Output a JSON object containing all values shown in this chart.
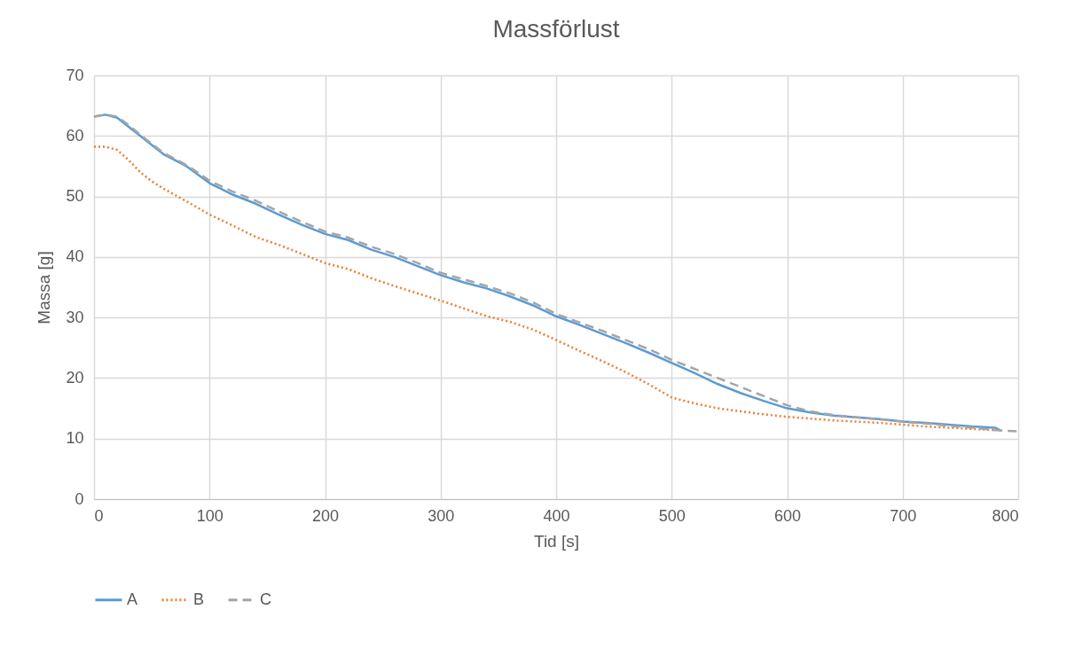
{
  "chart_data": {
    "type": "line",
    "title": "Massförlust",
    "xlabel": "Tid [s]",
    "ylabel": "Massa [g]",
    "xlim": [
      0,
      800
    ],
    "xticks": [
      0,
      100,
      200,
      300,
      400,
      500,
      600,
      700,
      800
    ],
    "ylim": [
      0,
      70
    ],
    "yticks": [
      0,
      10,
      20,
      30,
      40,
      50,
      60,
      70
    ],
    "grid": true,
    "legend": "bottom",
    "marker": "none",
    "series": [
      {
        "name": "A",
        "color": "#5b9bd5",
        "line_style": "solid",
        "x": [
          0,
          10,
          20,
          30,
          40,
          50,
          60,
          80,
          100,
          120,
          140,
          160,
          180,
          200,
          220,
          240,
          260,
          280,
          300,
          320,
          340,
          360,
          380,
          400,
          420,
          440,
          460,
          480,
          500,
          520,
          540,
          560,
          580,
          600,
          620,
          640,
          660,
          680,
          700,
          720,
          740,
          760,
          780,
          785
        ],
        "values": [
          63.2,
          63.5,
          63.0,
          61.5,
          60,
          58.5,
          57,
          55,
          52.2,
          50.3,
          48.8,
          47,
          45.3,
          43.8,
          42.8,
          41.2,
          40,
          38.5,
          37,
          35.8,
          34.8,
          33.5,
          32,
          30.2,
          28.8,
          27.3,
          25.8,
          24.2,
          22.5,
          20.8,
          19,
          17.5,
          16.2,
          15,
          14.3,
          13.8,
          13.5,
          13.2,
          12.8,
          12.6,
          12.3,
          12,
          11.8,
          11.3
        ]
      },
      {
        "name": "B",
        "color": "#ed7d31",
        "line_style": "dotted",
        "x": [
          0,
          10,
          20,
          30,
          40,
          50,
          60,
          80,
          100,
          120,
          140,
          160,
          180,
          200,
          220,
          240,
          260,
          280,
          300,
          320,
          340,
          360,
          380,
          400,
          420,
          440,
          460,
          480,
          500,
          520,
          540,
          560,
          580,
          600,
          620,
          640,
          660,
          680,
          700,
          720,
          740,
          760,
          780
        ],
        "values": [
          58.2,
          58.2,
          57.7,
          56,
          54,
          52.5,
          51.3,
          49.2,
          47,
          45.2,
          43.3,
          42,
          40.5,
          39,
          38,
          36.5,
          35.2,
          34,
          32.8,
          31.5,
          30.2,
          29.3,
          28,
          26.3,
          24.5,
          22.8,
          21,
          19,
          16.8,
          15.8,
          15,
          14.5,
          14,
          13.6,
          13.3,
          13,
          12.8,
          12.6,
          12.3,
          12,
          11.8,
          11.6,
          11.4
        ]
      },
      {
        "name": "C",
        "color": "#a5a5a5",
        "line_style": "dashed",
        "x": [
          0,
          10,
          20,
          30,
          40,
          50,
          60,
          80,
          100,
          120,
          140,
          160,
          180,
          200,
          220,
          240,
          260,
          280,
          300,
          320,
          340,
          360,
          380,
          400,
          420,
          440,
          460,
          480,
          500,
          520,
          540,
          560,
          580,
          600,
          620,
          640,
          660,
          680,
          700,
          720,
          740,
          760,
          780,
          790,
          800
        ],
        "values": [
          63.2,
          63.5,
          63.2,
          61.8,
          60.2,
          58.7,
          57.2,
          55.2,
          52.6,
          50.8,
          49.3,
          47.5,
          45.8,
          44.2,
          43.2,
          41.7,
          40.5,
          39,
          37.4,
          36.3,
          35.2,
          34,
          32.5,
          30.6,
          29.2,
          27.8,
          26.3,
          24.8,
          23,
          21.5,
          20,
          18.5,
          17,
          15.5,
          14.5,
          13.9,
          13.5,
          13.2,
          12.8,
          12.5,
          12.1,
          11.8,
          11.4,
          11.3,
          11.2
        ]
      }
    ]
  }
}
